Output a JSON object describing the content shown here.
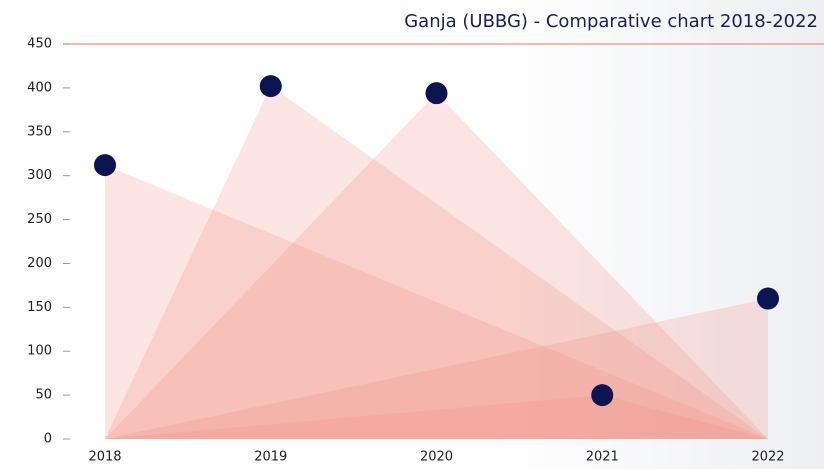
{
  "chart_data": {
    "type": "triangle",
    "title": "Ganja (UBBG) - Comparative chart 2018-2022",
    "categories": [
      "2018",
      "2019",
      "2020",
      "2021",
      "2022"
    ],
    "values": [
      312,
      402,
      394,
      50,
      160
    ],
    "color": "#f08a7c",
    "point_color": "#0d1452",
    "ylim": [
      0,
      450
    ],
    "yticks": [
      0,
      50,
      100,
      150,
      200,
      250,
      300,
      350,
      400,
      450
    ]
  }
}
